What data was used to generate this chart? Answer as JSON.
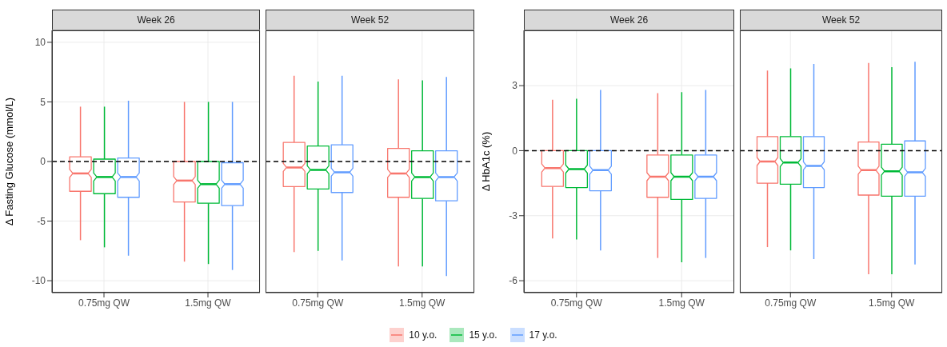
{
  "chart_data": [
    {
      "type": "box",
      "title": "Week 26",
      "ylabel": "Δ Fasting Glucose (mmol/L)",
      "categories": [
        "0.75mg QW",
        "1.5mg QW"
      ],
      "ylim": [
        -11,
        11
      ],
      "yticks": [
        -10,
        -5,
        0,
        5,
        10
      ],
      "grid": true,
      "legend": "bottom",
      "ref_lines": [
        {
          "axis": "y",
          "value": 0,
          "color": "#000000",
          "line_style": "dashed"
        }
      ],
      "series": [
        {
          "name": "10 y.o.",
          "color": "#f8766d",
          "boxes": [
            {
              "low": -6.6,
              "q1": -2.5,
              "median": -1.0,
              "q3": 0.4,
              "high": 4.6
            },
            {
              "low": -8.4,
              "q1": -3.4,
              "median": -1.6,
              "q3": 0,
              "high": 5.0
            }
          ]
        },
        {
          "name": "15 y.o.",
          "color": "#00ba38",
          "boxes": [
            {
              "low": -7.2,
              "q1": -2.7,
              "median": -1.3,
              "q3": 0.2,
              "high": 4.6
            },
            {
              "low": -8.6,
              "q1": -3.5,
              "median": -1.9,
              "q3": 0,
              "high": 5.0
            }
          ]
        },
        {
          "name": "17 y.o.",
          "color": "#619cff",
          "boxes": [
            {
              "low": -7.9,
              "q1": -3.0,
              "median": -1.3,
              "q3": 0.3,
              "high": 5.1
            },
            {
              "low": -9.1,
              "q1": -3.7,
              "median": -1.9,
              "q3": -0.1,
              "high": 5.0
            }
          ]
        }
      ]
    },
    {
      "type": "box",
      "title": "Week 52",
      "categories": [
        "0.75mg QW",
        "1.5mg QW"
      ],
      "ylim": [
        -11,
        11
      ],
      "yticks": [
        -10,
        -5,
        0,
        5,
        10
      ],
      "tick_labels": "x",
      "grid": true,
      "ref_lines": [
        {
          "axis": "y",
          "value": 0,
          "color": "#000000",
          "line_style": "dashed"
        }
      ],
      "series": [
        {
          "color": "#f8766d",
          "boxes": [
            {
              "low": -7.6,
              "q1": -2.1,
              "median": -0.5,
              "q3": 1.6,
              "high": 7.2
            },
            {
              "low": -8.8,
              "q1": -3.0,
              "median": -1.0,
              "q3": 1.1,
              "high": 6.9
            }
          ]
        },
        {
          "color": "#00ba38",
          "boxes": [
            {
              "low": -7.5,
              "q1": -2.3,
              "median": -0.7,
              "q3": 1.3,
              "high": 6.7
            },
            {
              "low": -8.8,
              "q1": -3.1,
              "median": -1.3,
              "q3": 0.9,
              "high": 6.8
            }
          ]
        },
        {
          "color": "#619cff",
          "boxes": [
            {
              "low": -8.3,
              "q1": -2.6,
              "median": -0.9,
              "q3": 1.4,
              "high": 7.2
            },
            {
              "low": -9.6,
              "q1": -3.3,
              "median": -1.3,
              "q3": 0.9,
              "high": 7.1
            }
          ]
        }
      ]
    },
    {
      "type": "box",
      "title": "Week 26",
      "ylabel": "Δ HbA1c (%)",
      "categories": [
        "0.75mg QW",
        "1.5mg QW"
      ],
      "ylim": [
        -6.55,
        5.55
      ],
      "yticks": [
        -6,
        -3,
        0,
        3
      ],
      "grid": true,
      "ref_lines": [
        {
          "axis": "y",
          "value": 0,
          "color": "#000000",
          "line_style": "dashed"
        }
      ],
      "series": [
        {
          "color": "#f8766d",
          "boxes": [
            {
              "low": -4.05,
              "q1": -1.65,
              "median": -0.8,
              "q3": 0,
              "high": 2.35
            },
            {
              "low": -4.95,
              "q1": -2.15,
              "median": -1.2,
              "q3": -0.2,
              "high": 2.65
            }
          ]
        },
        {
          "color": "#00ba38",
          "boxes": [
            {
              "low": -4.1,
              "q1": -1.7,
              "median": -0.85,
              "q3": 0,
              "high": 2.4
            },
            {
              "low": -5.15,
              "q1": -2.25,
              "median": -1.2,
              "q3": -0.2,
              "high": 2.7
            }
          ]
        },
        {
          "color": "#619cff",
          "boxes": [
            {
              "low": -4.6,
              "q1": -1.85,
              "median": -0.9,
              "q3": 0,
              "high": 2.8
            },
            {
              "low": -4.95,
              "q1": -2.2,
              "median": -1.2,
              "q3": -0.2,
              "high": 2.8
            }
          ]
        }
      ]
    },
    {
      "type": "box",
      "title": "Week 52",
      "categories": [
        "0.75mg QW",
        "1.5mg QW"
      ],
      "ylim": [
        -6.55,
        5.55
      ],
      "yticks": [
        -6,
        -3,
        0,
        3
      ],
      "tick_labels": "x",
      "grid": true,
      "ref_lines": [
        {
          "axis": "y",
          "value": 0,
          "color": "#000000",
          "line_style": "dashed"
        }
      ],
      "series": [
        {
          "color": "#f8766d",
          "boxes": [
            {
              "low": -4.45,
              "q1": -1.5,
              "median": -0.5,
              "q3": 0.65,
              "high": 3.7
            },
            {
              "low": -5.7,
              "q1": -2.05,
              "median": -0.9,
              "q3": 0.4,
              "high": 4.05
            }
          ]
        },
        {
          "color": "#00ba38",
          "boxes": [
            {
              "low": -4.6,
              "q1": -1.55,
              "median": -0.55,
              "q3": 0.65,
              "high": 3.8
            },
            {
              "low": -5.7,
              "q1": -2.1,
              "median": -0.95,
              "q3": 0.3,
              "high": 3.85
            }
          ]
        },
        {
          "color": "#619cff",
          "boxes": [
            {
              "low": -5.0,
              "q1": -1.7,
              "median": -0.7,
              "q3": 0.65,
              "high": 4.0
            },
            {
              "low": -5.25,
              "q1": -2.1,
              "median": -1.0,
              "q3": 0.45,
              "high": 4.1
            }
          ]
        }
      ]
    }
  ]
}
